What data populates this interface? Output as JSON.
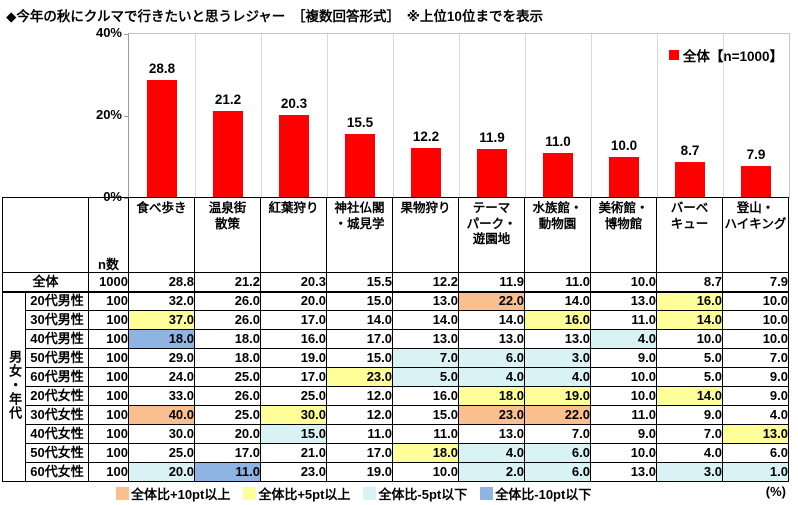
{
  "title": "◆今年の秋にクルマで行きたいと思うレジャー　［複数回答形式］　※上位10位までを表示",
  "chart_data": {
    "type": "bar",
    "title": "今年の秋にクルマで行きたいと思うレジャー（上位10位）",
    "categories": [
      "食べ歩き",
      "温泉街散策",
      "紅葉狩り",
      "神社仏閣・城見学",
      "果物狩り",
      "テーマパーク・遊園地",
      "水族館・動物園",
      "美術館・博物館",
      "バーベキュー",
      "登山・ハイキング"
    ],
    "category_lines": [
      [
        "食べ歩き"
      ],
      [
        "温泉街",
        "散策"
      ],
      [
        "紅葉狩り"
      ],
      [
        "神社仏閣",
        "・城見学"
      ],
      [
        "果物狩り"
      ],
      [
        "テーマ",
        "パーク・",
        "遊園地"
      ],
      [
        "水族館・",
        "動物園"
      ],
      [
        "美術館・",
        "博物館"
      ],
      [
        "バーベ",
        "キュー"
      ],
      [
        "登山・",
        "ハイキング"
      ]
    ],
    "values": [
      28.8,
      21.2,
      20.3,
      15.5,
      12.2,
      11.9,
      11.0,
      10.0,
      8.7,
      7.9
    ],
    "ylim": [
      0,
      40
    ],
    "yticks": [
      "40%",
      "20%",
      "0%"
    ],
    "grid": "vertical-only",
    "legend": "全体【n=1000】",
    "legend_position": "top-right",
    "bar_color": "#ff0000"
  },
  "table": {
    "n_header": "n数",
    "group_label": "男女・年代",
    "rows": [
      {
        "label": "全体",
        "n": "1000",
        "values": [
          28.8,
          21.2,
          20.3,
          15.5,
          12.2,
          11.9,
          11.0,
          10.0,
          8.7,
          7.9
        ],
        "hl": [
          "",
          "",
          "",
          "",
          "",
          "",
          "",
          "",
          "",
          ""
        ]
      },
      {
        "label": "20代男性",
        "n": "100",
        "values": [
          32.0,
          26.0,
          20.0,
          15.0,
          13.0,
          22.0,
          14.0,
          13.0,
          16.0,
          10.0
        ],
        "hl": [
          "",
          "",
          "",
          "",
          "",
          "o",
          "",
          "",
          "y",
          ""
        ]
      },
      {
        "label": "30代男性",
        "n": "100",
        "values": [
          37.0,
          26.0,
          17.0,
          14.0,
          14.0,
          14.0,
          16.0,
          11.0,
          14.0,
          10.0
        ],
        "hl": [
          "y",
          "",
          "",
          "",
          "",
          "",
          "y",
          "",
          "y",
          ""
        ]
      },
      {
        "label": "40代男性",
        "n": "100",
        "values": [
          18.0,
          18.0,
          16.0,
          17.0,
          13.0,
          13.0,
          13.0,
          4.0,
          10.0,
          10.0
        ],
        "hl": [
          "b",
          "",
          "",
          "",
          "",
          "",
          "",
          "c",
          "",
          ""
        ]
      },
      {
        "label": "50代男性",
        "n": "100",
        "values": [
          29.0,
          18.0,
          19.0,
          15.0,
          7.0,
          6.0,
          3.0,
          9.0,
          5.0,
          7.0
        ],
        "hl": [
          "",
          "",
          "",
          "",
          "c",
          "c",
          "c",
          "",
          "",
          ""
        ]
      },
      {
        "label": "60代男性",
        "n": "100",
        "values": [
          24.0,
          25.0,
          17.0,
          23.0,
          5.0,
          4.0,
          4.0,
          10.0,
          5.0,
          9.0
        ],
        "hl": [
          "",
          "",
          "",
          "y",
          "c",
          "c",
          "c",
          "",
          "",
          ""
        ]
      },
      {
        "label": "20代女性",
        "n": "100",
        "values": [
          33.0,
          26.0,
          25.0,
          12.0,
          16.0,
          18.0,
          19.0,
          10.0,
          14.0,
          9.0
        ],
        "hl": [
          "",
          "",
          "",
          "",
          "",
          "y",
          "y",
          "",
          "y",
          ""
        ]
      },
      {
        "label": "30代女性",
        "n": "100",
        "values": [
          40.0,
          25.0,
          30.0,
          12.0,
          15.0,
          23.0,
          22.0,
          11.0,
          9.0,
          4.0
        ],
        "hl": [
          "o",
          "",
          "y",
          "",
          "",
          "o",
          "o",
          "",
          "",
          ""
        ]
      },
      {
        "label": "40代女性",
        "n": "100",
        "values": [
          30.0,
          20.0,
          15.0,
          11.0,
          11.0,
          13.0,
          7.0,
          9.0,
          7.0,
          13.0
        ],
        "hl": [
          "",
          "",
          "c",
          "",
          "",
          "",
          "",
          "",
          "",
          "y"
        ]
      },
      {
        "label": "50代女性",
        "n": "100",
        "values": [
          25.0,
          17.0,
          21.0,
          17.0,
          18.0,
          4.0,
          6.0,
          10.0,
          4.0,
          6.0
        ],
        "hl": [
          "",
          "",
          "",
          "",
          "y",
          "c",
          "c",
          "",
          "",
          ""
        ]
      },
      {
        "label": "60代女性",
        "n": "100",
        "values": [
          20.0,
          11.0,
          23.0,
          19.0,
          10.0,
          2.0,
          6.0,
          13.0,
          3.0,
          1.0
        ],
        "hl": [
          "c",
          "b",
          "",
          "",
          "",
          "c",
          "c",
          "",
          "c",
          "c"
        ]
      }
    ]
  },
  "legend_bottom": {
    "items": [
      {
        "label": "全体比+10pt以上",
        "color": "#fabf8f",
        "code": "o"
      },
      {
        "label": "全体比+5pt以上",
        "color": "#ffff99",
        "code": "y"
      },
      {
        "label": "全体比-5pt以下",
        "color": "#d9f2f4",
        "code": "c"
      },
      {
        "label": "全体比-10pt以下",
        "color": "#8eb4e3",
        "code": "b"
      }
    ],
    "unit": "(%)"
  },
  "colors": {
    "bar": "#ff0000",
    "hl_plus10": "#fabf8f",
    "hl_plus5": "#ffff99",
    "hl_minus5": "#d9f2f4",
    "hl_minus10": "#8eb4e3",
    "gridline": "#d9d9d9",
    "table_border": "#000000"
  }
}
